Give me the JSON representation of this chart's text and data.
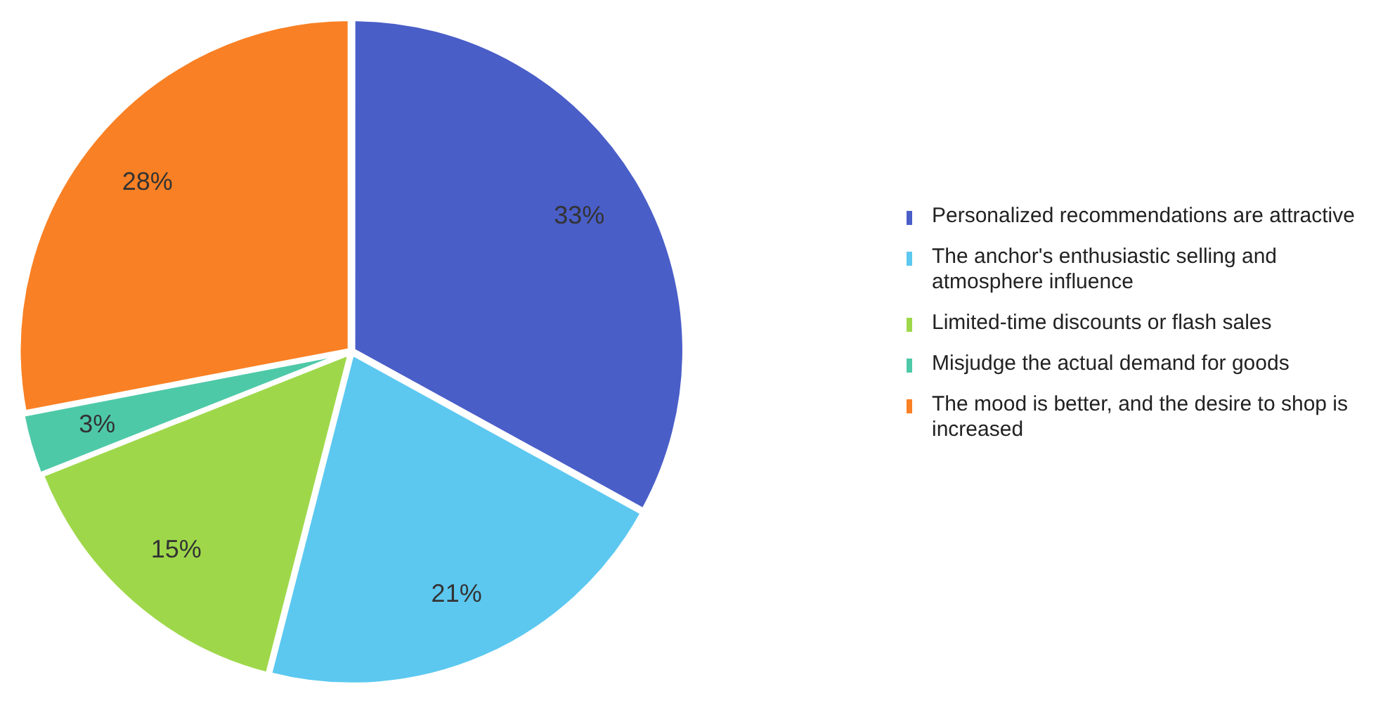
{
  "chart_data": {
    "type": "pie",
    "categories": [
      "Personalized recommendations are attractive",
      "The anchor's enthusiastic selling and atmosphere influence",
      "Limited-time discounts or flash sales",
      "Misjudge the actual demand for goods",
      "The mood is better, and the desire to shop is increased"
    ],
    "values": [
      33,
      21,
      15,
      3,
      28
    ],
    "colors": [
      "#4a5ec8",
      "#5cc8f0",
      "#9ed84a",
      "#4ec9a8",
      "#f98024"
    ],
    "value_labels": [
      "33%",
      "21%",
      "15%",
      "3%",
      "28%"
    ],
    "legend": "right"
  }
}
